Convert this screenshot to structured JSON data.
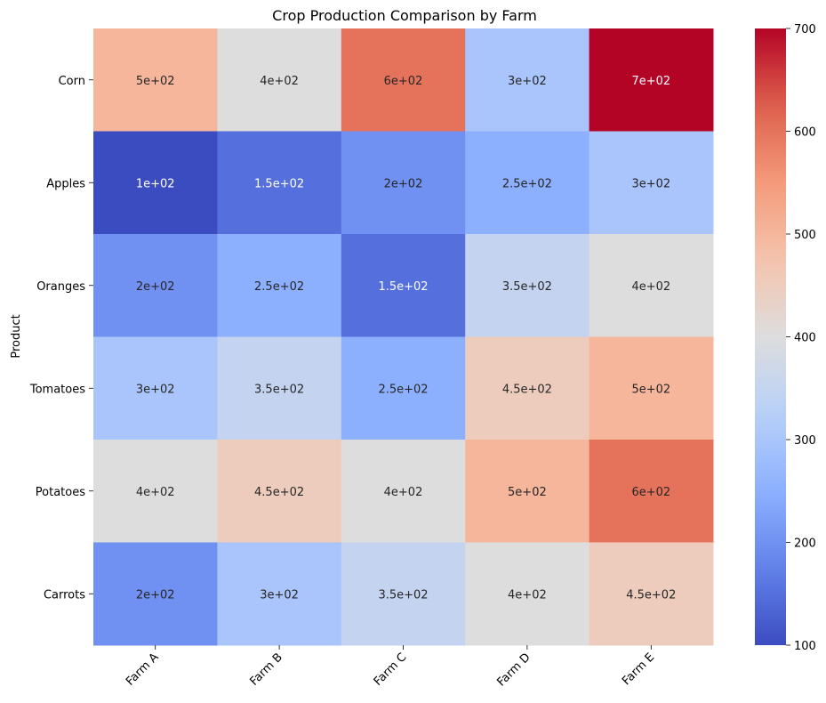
{
  "chart_data": {
    "type": "heatmap",
    "title": "Crop Production Comparison by Farm",
    "xlabel": "",
    "ylabel": "Product",
    "x_categories": [
      "Farm A",
      "Farm B",
      "Farm C",
      "Farm D",
      "Farm E"
    ],
    "y_categories": [
      "Corn",
      "Apples",
      "Oranges",
      "Tomatoes",
      "Potatoes",
      "Carrots"
    ],
    "values": [
      [
        500,
        400,
        600,
        300,
        700
      ],
      [
        100,
        150,
        200,
        250,
        300
      ],
      [
        200,
        250,
        150,
        350,
        400
      ],
      [
        300,
        350,
        250,
        450,
        500
      ],
      [
        400,
        450,
        400,
        500,
        600
      ],
      [
        200,
        300,
        350,
        400,
        450
      ]
    ],
    "cell_labels": [
      [
        "5e+02",
        "4e+02",
        "6e+02",
        "3e+02",
        "7e+02"
      ],
      [
        "1e+02",
        "1.5e+02",
        "2e+02",
        "2.5e+02",
        "3e+02"
      ],
      [
        "2e+02",
        "2.5e+02",
        "1.5e+02",
        "3.5e+02",
        "4e+02"
      ],
      [
        "3e+02",
        "3.5e+02",
        "2.5e+02",
        "4.5e+02",
        "5e+02"
      ],
      [
        "4e+02",
        "4.5e+02",
        "4e+02",
        "5e+02",
        "6e+02"
      ],
      [
        "2e+02",
        "3e+02",
        "3.5e+02",
        "4e+02",
        "4.5e+02"
      ]
    ],
    "colormap": "coolwarm",
    "vmin": 100,
    "vmax": 700,
    "colorbar_ticks": [
      100,
      200,
      300,
      400,
      500,
      600,
      700
    ],
    "colorbar_tick_labels": [
      "100",
      "200",
      "300",
      "400",
      "500",
      "600",
      "700"
    ],
    "grid": false,
    "legend": "colorbar-right"
  }
}
